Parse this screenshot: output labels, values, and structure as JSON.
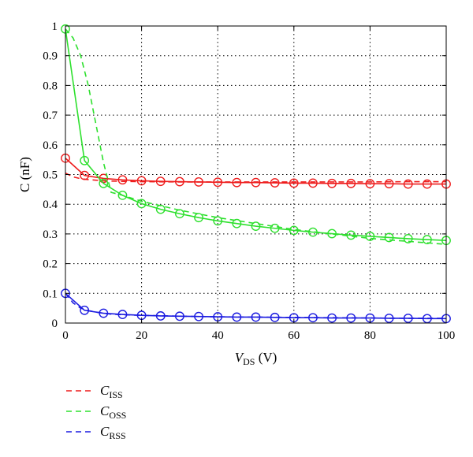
{
  "chart_data": {
    "type": "line",
    "xlabel": {
      "main": "V",
      "sub": "DS",
      "unit": " (V)"
    },
    "ylabel": "C (nF)",
    "xlim": [
      0,
      100
    ],
    "ylim": [
      0,
      1
    ],
    "xticks": [
      "0",
      "20",
      "40",
      "60",
      "80",
      "100"
    ],
    "yticks": [
      "0",
      "0.1",
      "0.2",
      "0.3",
      "0.4",
      "0.5",
      "0.6",
      "0.7",
      "0.8",
      "0.9",
      "1"
    ],
    "grid": true,
    "legend_position": "bottom-left",
    "marker_x": [
      0,
      5,
      10,
      15,
      20,
      25,
      30,
      35,
      40,
      45,
      50,
      55,
      60,
      65,
      70,
      75,
      80,
      85,
      90,
      95,
      100
    ],
    "dashed_x": [
      0,
      2,
      4,
      6,
      8,
      10,
      12,
      15,
      20,
      30,
      40,
      50,
      60,
      70,
      80,
      90,
      100
    ],
    "series": [
      {
        "legend_main": "C",
        "legend_sub": "ISS",
        "color": "#ee1c1c",
        "marker_values": [
          0.555,
          0.497,
          0.487,
          0.482,
          0.479,
          0.477,
          0.476,
          0.475,
          0.474,
          0.473,
          0.473,
          0.472,
          0.471,
          0.471,
          0.47,
          0.47,
          0.469,
          0.469,
          0.468,
          0.468,
          0.468
        ],
        "dashed_values": [
          0.505,
          0.492,
          0.486,
          0.483,
          0.481,
          0.479,
          0.478,
          0.477,
          0.476,
          0.475,
          0.475,
          0.475,
          0.475,
          0.475,
          0.475,
          0.476,
          0.476
        ]
      },
      {
        "legend_main": "C",
        "legend_sub": "OSS",
        "color": "#2ee02e",
        "marker_values": [
          0.99,
          0.547,
          0.47,
          0.43,
          0.402,
          0.383,
          0.368,
          0.355,
          0.344,
          0.335,
          0.326,
          0.319,
          0.312,
          0.306,
          0.301,
          0.296,
          0.292,
          0.288,
          0.284,
          0.281,
          0.278
        ],
        "dashed_values": [
          0.99,
          0.96,
          0.9,
          0.8,
          0.67,
          0.54,
          0.44,
          0.43,
          0.41,
          0.38,
          0.355,
          0.335,
          0.315,
          0.3,
          0.285,
          0.275,
          0.265
        ]
      },
      {
        "legend_main": "C",
        "legend_sub": "RSS",
        "color": "#1c1ce0",
        "marker_values": [
          0.1,
          0.043,
          0.033,
          0.029,
          0.026,
          0.024,
          0.023,
          0.022,
          0.021,
          0.02,
          0.02,
          0.019,
          0.018,
          0.018,
          0.017,
          0.017,
          0.017,
          0.016,
          0.016,
          0.015,
          0.015
        ],
        "dashed_values": [
          0.1,
          0.068,
          0.05,
          0.042,
          0.037,
          0.033,
          0.03,
          0.028,
          0.026,
          0.023,
          0.021,
          0.02,
          0.019,
          0.018,
          0.017,
          0.016,
          0.016
        ]
      }
    ]
  }
}
